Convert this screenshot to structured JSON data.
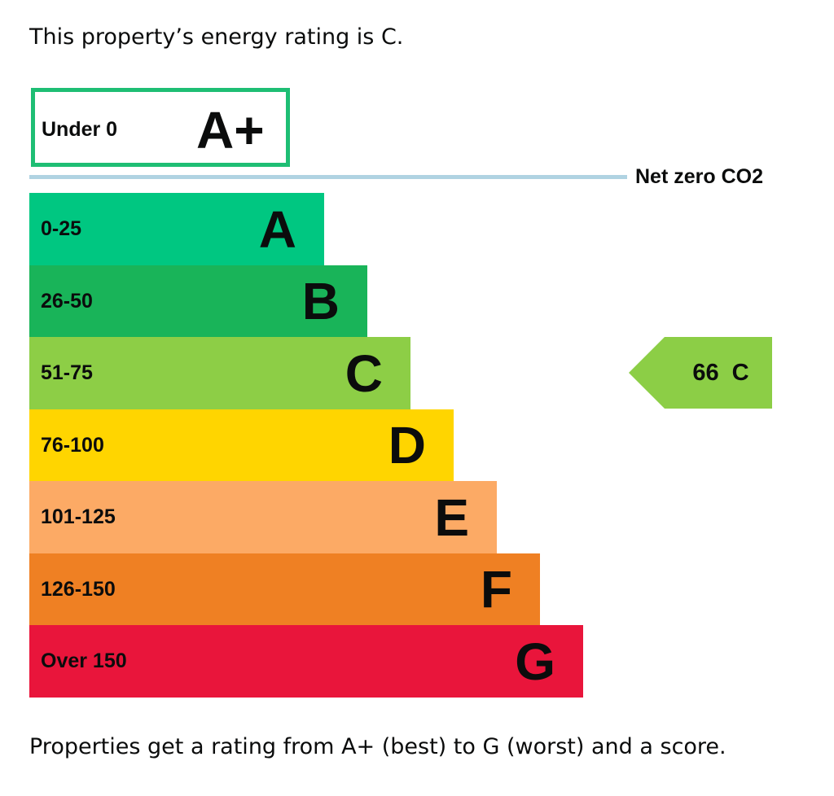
{
  "intro_text": "This property’s energy rating is C.",
  "footer_text": "Properties get a rating from A+ (best) to G (worst) and a score.",
  "net_zero_label": "Net zero CO2",
  "colors": {
    "aplus_border": "#1ebe74",
    "net_zero_line": "#b0d3e2",
    "current_arrow": "#8cce46"
  },
  "chart_data": {
    "type": "bar",
    "top_band": {
      "rating": "A+",
      "range": "Under 0"
    },
    "bands": [
      {
        "rating": "A",
        "range": "0-25",
        "color": "#00c781"
      },
      {
        "rating": "B",
        "range": "26-50",
        "color": "#19b459"
      },
      {
        "rating": "C",
        "range": "51-75",
        "color": "#8dce46"
      },
      {
        "rating": "D",
        "range": "76-100",
        "color": "#ffd500"
      },
      {
        "rating": "E",
        "range": "101-125",
        "color": "#fcaa65"
      },
      {
        "rating": "F",
        "range": "126-150",
        "color": "#ef8023"
      },
      {
        "rating": "G",
        "range": "Over 150",
        "color": "#e9153b"
      }
    ],
    "current": {
      "score": "66",
      "rating": "C"
    }
  }
}
